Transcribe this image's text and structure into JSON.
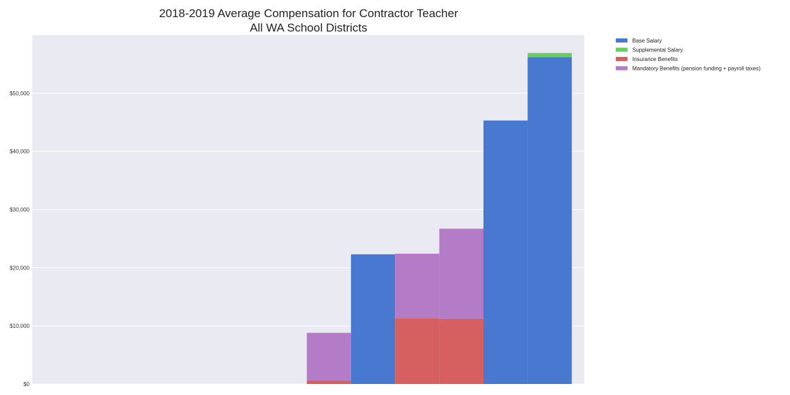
{
  "chart_data": {
    "type": "bar",
    "title": "2018-2019 Average Compensation for Contractor Teacher",
    "subtitle": "All WA School Districts",
    "xlabel": "",
    "ylabel": "",
    "ylim": [
      0,
      60000
    ],
    "yticks": [
      0,
      10000,
      20000,
      30000,
      40000,
      50000
    ],
    "ytick_labels": [
      "$0",
      "$10,000",
      "$20,000",
      "$30,000",
      "$40,000",
      "$50,000"
    ],
    "grid": true,
    "legend_position": "outside-top-right",
    "background": "#eaeaf2",
    "series": [
      {
        "name": "Base Salary",
        "color": "#4878cf"
      },
      {
        "name": "Supplemental Salary",
        "color": "#6acc65"
      },
      {
        "name": "Insurance Benefits",
        "color": "#d65f5f"
      },
      {
        "name": "Mandatory Benefits (pension funding + payroll taxes)",
        "color": "#b47cc7"
      }
    ],
    "bars": [
      {
        "slot": 6,
        "segments": [
          {
            "series": 2,
            "y0": 0,
            "y1": 600
          },
          {
            "series": 3,
            "y0": 600,
            "y1": 8800
          }
        ]
      },
      {
        "slot": 7,
        "segments": [
          {
            "series": 0,
            "y0": 0,
            "y1": 22300
          }
        ]
      },
      {
        "slot": 8,
        "segments": [
          {
            "series": 2,
            "y0": 0,
            "y1": 11300
          },
          {
            "series": 3,
            "y0": 11300,
            "y1": 22400
          }
        ]
      },
      {
        "slot": 9,
        "segments": [
          {
            "series": 2,
            "y0": 0,
            "y1": 11200
          },
          {
            "series": 3,
            "y0": 11200,
            "y1": 26700
          }
        ]
      },
      {
        "slot": 10,
        "segments": [
          {
            "series": 0,
            "y0": 0,
            "y1": 45300
          }
        ]
      },
      {
        "slot": 11,
        "segments": [
          {
            "series": 0,
            "y0": 0,
            "y1": 56200
          },
          {
            "series": 1,
            "y0": 56200,
            "y1": 56900
          }
        ]
      }
    ]
  }
}
